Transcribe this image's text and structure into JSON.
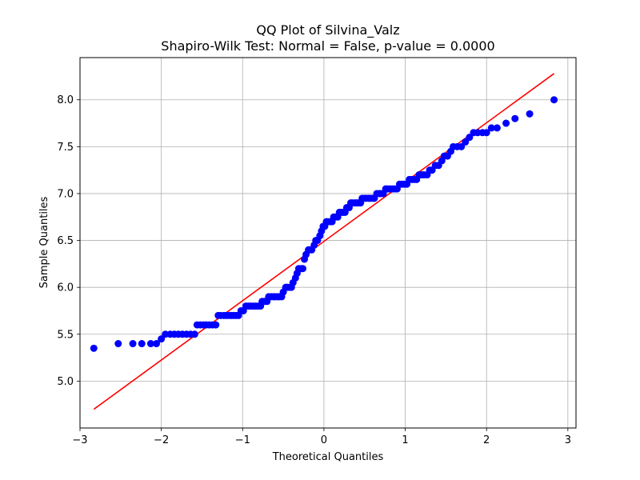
{
  "chart_data": {
    "type": "scatter",
    "title_line1": "QQ Plot of Silvina_Valz",
    "title_line2": "Shapiro-Wilk Test: Normal = False, p-value = 0.0000",
    "xlabel": "Theoretical Quantiles",
    "ylabel": "Sample Quantiles",
    "xlim": [
      -3.0,
      3.1
    ],
    "ylim": [
      4.5,
      8.45
    ],
    "xticks": [
      -3,
      -2,
      -1,
      0,
      1,
      2,
      3
    ],
    "xtick_labels": [
      "−3",
      "−2",
      "−1",
      "0",
      "1",
      "2",
      "3"
    ],
    "yticks": [
      5.0,
      5.5,
      6.0,
      6.5,
      7.0,
      7.5,
      8.0
    ],
    "ytick_labels": [
      "5.0",
      "5.5",
      "6.0",
      "6.5",
      "7.0",
      "7.5",
      "8.0"
    ],
    "grid": true,
    "point_color": "#0000ff",
    "line_color": "#ff0000",
    "fit_line": {
      "x": [
        -2.83,
        2.83
      ],
      "y": [
        4.7,
        8.28
      ]
    },
    "points": [
      [
        -2.83,
        5.35
      ],
      [
        -2.53,
        5.4
      ],
      [
        -2.35,
        5.4
      ],
      [
        -2.24,
        5.4
      ],
      [
        -2.13,
        5.4
      ],
      [
        -2.06,
        5.4
      ],
      [
        -2.0,
        5.45
      ],
      [
        -1.95,
        5.5
      ],
      [
        -1.89,
        5.5
      ],
      [
        -1.84,
        5.5
      ],
      [
        -1.79,
        5.5
      ],
      [
        -1.74,
        5.5
      ],
      [
        -1.69,
        5.5
      ],
      [
        -1.64,
        5.5
      ],
      [
        -1.59,
        5.5
      ],
      [
        -1.56,
        5.6
      ],
      [
        -1.52,
        5.6
      ],
      [
        -1.48,
        5.6
      ],
      [
        -1.45,
        5.6
      ],
      [
        -1.41,
        5.6
      ],
      [
        -1.37,
        5.6
      ],
      [
        -1.33,
        5.6
      ],
      [
        -1.3,
        5.7
      ],
      [
        -1.27,
        5.7
      ],
      [
        -1.23,
        5.7
      ],
      [
        -1.2,
        5.7
      ],
      [
        -1.17,
        5.7
      ],
      [
        -1.14,
        5.7
      ],
      [
        -1.11,
        5.7
      ],
      [
        -1.08,
        5.7
      ],
      [
        -1.05,
        5.7
      ],
      [
        -1.02,
        5.75
      ],
      [
        -0.99,
        5.75
      ],
      [
        -0.96,
        5.8
      ],
      [
        -0.93,
        5.8
      ],
      [
        -0.9,
        5.8
      ],
      [
        -0.87,
        5.8
      ],
      [
        -0.84,
        5.8
      ],
      [
        -0.81,
        5.8
      ],
      [
        -0.78,
        5.8
      ],
      [
        -0.76,
        5.85
      ],
      [
        -0.73,
        5.85
      ],
      [
        -0.7,
        5.85
      ],
      [
        -0.68,
        5.9
      ],
      [
        -0.65,
        5.9
      ],
      [
        -0.62,
        5.9
      ],
      [
        -0.6,
        5.9
      ],
      [
        -0.57,
        5.9
      ],
      [
        -0.55,
        5.9
      ],
      [
        -0.52,
        5.9
      ],
      [
        -0.5,
        5.95
      ],
      [
        -0.47,
        6.0
      ],
      [
        -0.45,
        6.0
      ],
      [
        -0.42,
        6.0
      ],
      [
        -0.4,
        6.0
      ],
      [
        -0.38,
        6.05
      ],
      [
        -0.35,
        6.1
      ],
      [
        -0.33,
        6.15
      ],
      [
        -0.31,
        6.2
      ],
      [
        -0.28,
        6.2
      ],
      [
        -0.26,
        6.2
      ],
      [
        -0.24,
        6.3
      ],
      [
        -0.22,
        6.35
      ],
      [
        -0.19,
        6.4
      ],
      [
        -0.17,
        6.4
      ],
      [
        -0.15,
        6.4
      ],
      [
        -0.12,
        6.45
      ],
      [
        -0.1,
        6.5
      ],
      [
        -0.08,
        6.5
      ],
      [
        -0.05,
        6.55
      ],
      [
        -0.03,
        6.6
      ],
      [
        -0.01,
        6.65
      ],
      [
        0.01,
        6.65
      ],
      [
        0.03,
        6.7
      ],
      [
        0.05,
        6.7
      ],
      [
        0.08,
        6.7
      ],
      [
        0.1,
        6.7
      ],
      [
        0.12,
        6.75
      ],
      [
        0.14,
        6.75
      ],
      [
        0.17,
        6.75
      ],
      [
        0.19,
        6.8
      ],
      [
        0.22,
        6.8
      ],
      [
        0.24,
        6.8
      ],
      [
        0.26,
        6.8
      ],
      [
        0.28,
        6.85
      ],
      [
        0.31,
        6.85
      ],
      [
        0.33,
        6.9
      ],
      [
        0.35,
        6.9
      ],
      [
        0.38,
        6.9
      ],
      [
        0.4,
        6.9
      ],
      [
        0.42,
        6.9
      ],
      [
        0.45,
        6.9
      ],
      [
        0.47,
        6.95
      ],
      [
        0.5,
        6.95
      ],
      [
        0.52,
        6.95
      ],
      [
        0.55,
        6.95
      ],
      [
        0.57,
        6.95
      ],
      [
        0.6,
        6.95
      ],
      [
        0.62,
        6.95
      ],
      [
        0.65,
        7.0
      ],
      [
        0.68,
        7.0
      ],
      [
        0.7,
        7.0
      ],
      [
        0.73,
        7.0
      ],
      [
        0.76,
        7.05
      ],
      [
        0.78,
        7.05
      ],
      [
        0.81,
        7.05
      ],
      [
        0.84,
        7.05
      ],
      [
        0.87,
        7.05
      ],
      [
        0.9,
        7.05
      ],
      [
        0.93,
        7.1
      ],
      [
        0.96,
        7.1
      ],
      [
        0.99,
        7.1
      ],
      [
        1.02,
        7.1
      ],
      [
        1.05,
        7.15
      ],
      [
        1.08,
        7.15
      ],
      [
        1.11,
        7.15
      ],
      [
        1.14,
        7.15
      ],
      [
        1.17,
        7.2
      ],
      [
        1.2,
        7.2
      ],
      [
        1.23,
        7.2
      ],
      [
        1.27,
        7.2
      ],
      [
        1.3,
        7.25
      ],
      [
        1.33,
        7.25
      ],
      [
        1.37,
        7.3
      ],
      [
        1.41,
        7.3
      ],
      [
        1.45,
        7.35
      ],
      [
        1.48,
        7.4
      ],
      [
        1.52,
        7.4
      ],
      [
        1.56,
        7.45
      ],
      [
        1.59,
        7.5
      ],
      [
        1.64,
        7.5
      ],
      [
        1.69,
        7.5
      ],
      [
        1.74,
        7.55
      ],
      [
        1.79,
        7.6
      ],
      [
        1.84,
        7.65
      ],
      [
        1.89,
        7.65
      ],
      [
        1.95,
        7.65
      ],
      [
        2.0,
        7.65
      ],
      [
        2.06,
        7.7
      ],
      [
        2.13,
        7.7
      ],
      [
        2.24,
        7.75
      ],
      [
        2.35,
        7.8
      ],
      [
        2.53,
        7.85
      ],
      [
        2.83,
        8.0
      ]
    ]
  }
}
